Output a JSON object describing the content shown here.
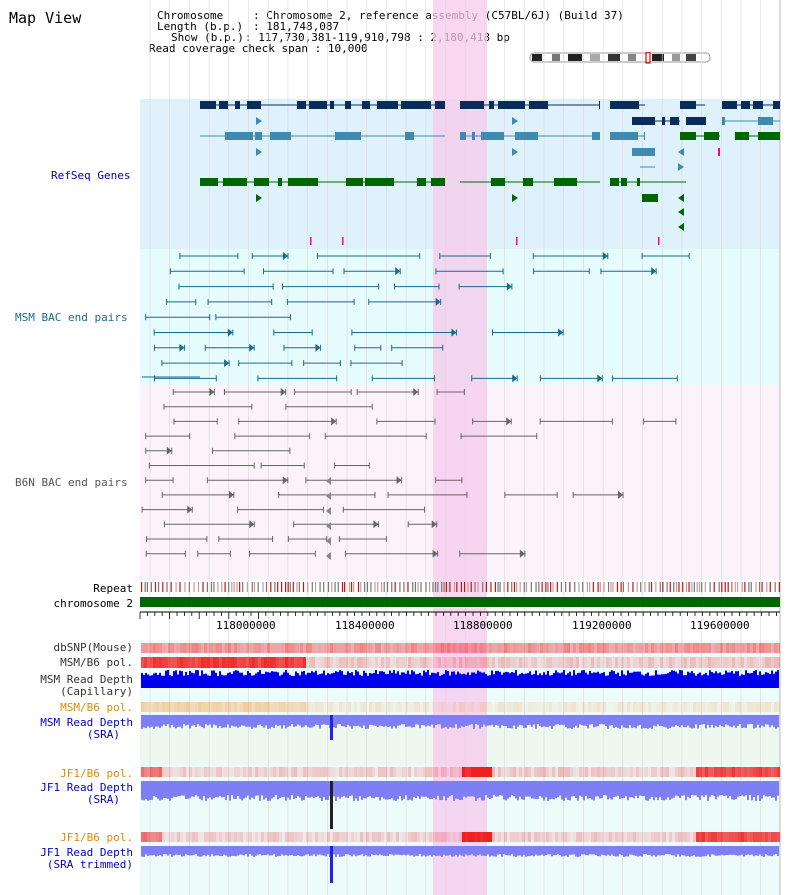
{
  "title": "Map View",
  "header": {
    "chromosome_label": "Chromosome",
    "chromosome_value": "Chromosome 2, reference assembly (C57BL/6J) (Build 37)",
    "length_label": "Length (b.p.)",
    "length_value": "181,748,087",
    "show_label": "Show (b.p.)",
    "show_value": "117,730,381-119,910,798 : 2,180,418 bp",
    "coverage_label": "Read coverage check span",
    "coverage_value": "10,000"
  },
  "tracks": {
    "refseq": "RefSeq Genes",
    "msm_bac": "MSM BAC end pairs",
    "b6n_bac": "B6N BAC end pairs",
    "repeat": "Repeat",
    "chromosome": "chromosome 2",
    "dbsnp": "dbSNP(Mouse)",
    "msm_b6_pol": "MSM/B6 pol.",
    "msm_read_depth_cap_1": "MSM Read Depth",
    "msm_read_depth_cap_2": "(Capillary)",
    "msm_b6_pol2": "MSM/B6 pol.",
    "msm_read_depth_sra_1": "MSM Read Depth",
    "msm_read_depth_sra_2": "(SRA)",
    "jf1_b6_pol": "JF1/B6 pol.",
    "jf1_read_depth_sra_1": "JF1 Read Depth",
    "jf1_read_depth_sra_2": "(SRA)",
    "jf1_b6_pol2": "JF1/B6 pol.",
    "jf1_read_depth_trim_1": "JF1 Read Depth",
    "jf1_read_depth_trim_2": "(SRA trimmed)"
  },
  "axis": {
    "ticks": [
      "118000000",
      "118400000",
      "118800000",
      "119200000",
      "119600000"
    ]
  },
  "colors": {
    "refseq_bg": "#dff1fa",
    "msm_bg": "#e6fbfb",
    "b6n_bg": "#fbf3f9",
    "highlight": "#f9dcf1",
    "dark_blue": "#0b2c5a",
    "mid_blue": "#3f8ab0",
    "green": "#006600",
    "msm_line": "#1a6b8a",
    "b6n_line": "#555555",
    "depth_blue": "#0000ee",
    "depth_light": "#7f7ff5",
    "pol_red": "#ee2020"
  }
}
